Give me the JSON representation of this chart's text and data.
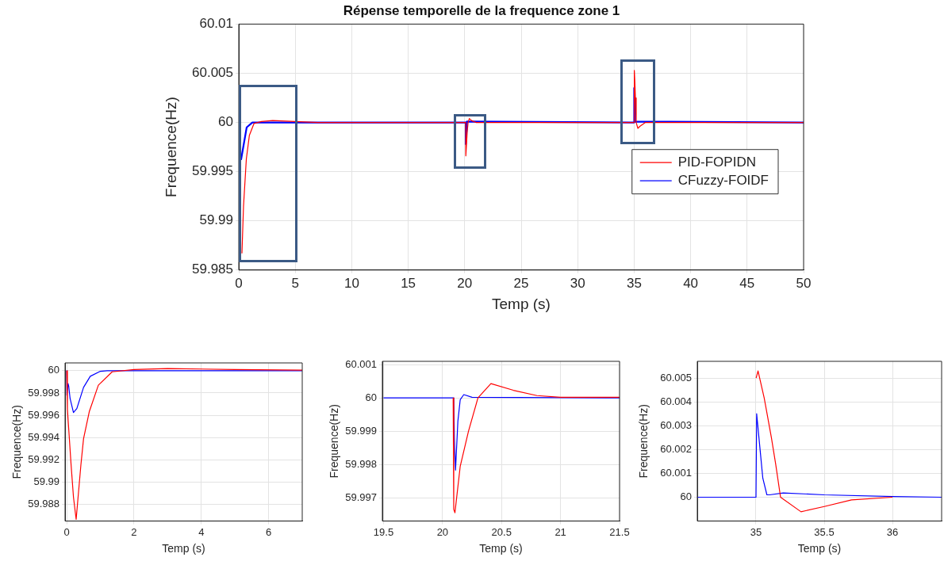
{
  "chart_data": [
    {
      "type": "line",
      "title": "Répense temporelle de la frequence zone 1",
      "xlabel": "Temp (s)",
      "ylabel": "Frequence(Hz)",
      "xlim": [
        0,
        50
      ],
      "xticks": [
        0,
        5,
        10,
        15,
        20,
        25,
        30,
        35,
        40,
        45,
        50
      ],
      "ylim": [
        59.985,
        60.01
      ],
      "yticks": [
        59.985,
        59.99,
        59.995,
        60,
        60.005,
        60.01
      ],
      "grid": true,
      "legend": "right",
      "series": [
        {
          "name": "PID-FOPIDN",
          "color": "#ff0000",
          "x": [
            0.28,
            0.42,
            0.67,
            0.94,
            1.35,
            2,
            3,
            5,
            7,
            20.09,
            20.1,
            20.22,
            20.3,
            20.41,
            20.6,
            21,
            35,
            35.015,
            35.06,
            35.113,
            35.18,
            35.33,
            35.5,
            36,
            50
          ],
          "values": [
            59.9867,
            59.9915,
            59.9963,
            59.9987,
            59.9999,
            60.0001,
            60.0002,
            60.0001,
            60,
            60,
            59.9966,
            59.999,
            60,
            60.0004,
            60.0002,
            60,
            60,
            60.0053,
            60.0042,
            60.0025,
            60,
            59.9994,
            59.9996,
            60,
            60
          ]
        },
        {
          "name": "CFuzzy-FOIDF",
          "color": "#0000ff",
          "x": [
            0.2,
            0.7,
            1.2,
            20.09,
            20.1,
            20.2,
            35,
            35.005,
            35.08,
            50
          ],
          "values": [
            59.9962,
            59.9995,
            60,
            60,
            59.9978,
            60.0001,
            60,
            60.0035,
            60.0001,
            60
          ]
        }
      ]
    },
    {
      "type": "line",
      "xlabel": "Temp (s)",
      "ylabel": "Frequence(Hz)",
      "xlim": [
        -0.05,
        7
      ],
      "xticks": [
        0,
        2,
        4,
        6
      ],
      "ylim": [
        59.9865,
        60.0007
      ],
      "yticks": [
        59.988,
        59.99,
        59.992,
        59.994,
        59.996,
        59.998,
        60
      ],
      "grid": true,
      "series": [
        {
          "color": "#ff0000",
          "x": [
            0,
            0.02,
            0.13,
            0.2,
            0.28,
            0.42,
            0.5,
            0.67,
            0.94,
            1.35,
            2,
            3,
            5,
            7
          ],
          "values": [
            60,
            59.99655,
            59.99153,
            59.98866,
            59.98665,
            59.9915,
            59.9939,
            59.99632,
            59.9987,
            59.9999,
            60.0001,
            60.0002,
            60.0001,
            60.00005
          ]
        },
        {
          "color": "#0000ff",
          "x": [
            0,
            0.005,
            0.04,
            0.06,
            0.1,
            0.2,
            0.3,
            0.5,
            0.7,
            1,
            1.2,
            7
          ],
          "values": [
            60,
            59.9978,
            59.99885,
            59.9986,
            59.9975,
            59.99625,
            59.9966,
            59.9985,
            59.9995,
            59.99995,
            60,
            60
          ]
        }
      ]
    },
    {
      "type": "line",
      "xlabel": "Temp (s)",
      "ylabel": "Frequence(Hz)",
      "xlim": [
        19.49,
        21.5
      ],
      "xticks": [
        19.5,
        20,
        20.5,
        21,
        21.5
      ],
      "ylim": [
        59.9963,
        60.0011
      ],
      "yticks": [
        59.997,
        59.998,
        59.999,
        60,
        60.001
      ],
      "grid": true,
      "series": [
        {
          "color": "#ff0000",
          "x": [
            20.09,
            20.095,
            20.105,
            20.15,
            20.22,
            20.3,
            20.41,
            20.6,
            20.8,
            21,
            21.5
          ],
          "values": [
            60,
            59.99665,
            59.99655,
            59.99795,
            59.999,
            60,
            60.00043,
            60.00023,
            60.00007,
            60.00002,
            60.00002
          ]
        },
        {
          "color": "#0000ff",
          "x": [
            19.5,
            20.095,
            20.1,
            20.11,
            20.13,
            20.15,
            20.18,
            20.25,
            21.5
          ],
          "values": [
            60,
            60,
            59.9988,
            59.99783,
            59.9993,
            59.99995,
            60.0001,
            60.00002,
            60
          ]
        }
      ]
    },
    {
      "type": "line",
      "xlabel": "Temp (s)",
      "ylabel": "Frequence(Hz)",
      "xlim": [
        34.57,
        36.36
      ],
      "xticks": [
        35,
        35.5,
        36
      ],
      "ylim": [
        59.999,
        60.0057
      ],
      "yticks": [
        60,
        60.001,
        60.002,
        60.003,
        60.004,
        60.005
      ],
      "grid": true,
      "series": [
        {
          "color": "#ff0000",
          "x": [
            35.001,
            35.015,
            35.06,
            35.113,
            35.144,
            35.18,
            35.33,
            35.5,
            35.7,
            36
          ],
          "values": [
            60.005,
            60.0053,
            60.00417,
            60.0025,
            60.0014,
            60,
            59.99939,
            59.99961,
            59.99989,
            60
          ]
        },
        {
          "color": "#0000ff",
          "x": [
            34.57,
            35,
            35.005,
            35.03,
            35.05,
            35.08,
            35.1,
            35.2,
            35.5,
            36,
            36.36
          ],
          "values": [
            60,
            60,
            60.0035,
            60.002,
            60.0008,
            60.0001,
            60.0001,
            60.00018,
            60.0001,
            60.00003,
            60
          ]
        }
      ]
    }
  ]
}
